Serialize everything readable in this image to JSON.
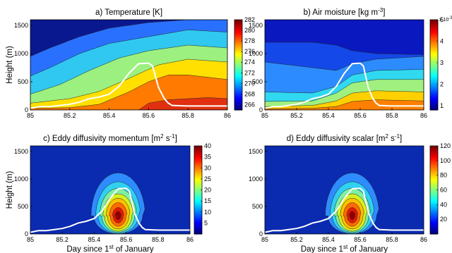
{
  "chart_data": [
    {
      "type": "contour",
      "title_main": "a) Temperature ",
      "title_unit": "[K]",
      "ylabel": "Height (m)",
      "xlabel": "",
      "x_ticks": [
        "85",
        "85.2",
        "85.4",
        "85.6",
        "85.8",
        "86"
      ],
      "y_ticks": [
        "0",
        "500",
        "1000",
        "1500"
      ],
      "xlim": [
        85,
        86
      ],
      "ylim": [
        0,
        1600
      ],
      "colorbar": {
        "ticks": [
          "266",
          "268",
          "270",
          "272",
          "274",
          "276",
          "278",
          "280",
          "282"
        ],
        "range": [
          265,
          282
        ],
        "colormap": "jet",
        "exponent": ""
      },
      "field_description_bands_bottom_to_top": [
        {
          "x": [
            85,
            85.2,
            85.35,
            85.5,
            85.6,
            85.7,
            85.8,
            86
          ],
          "y": [
            30,
            40,
            100,
            320,
            500,
            620,
            620,
            540
          ]
        },
        {
          "x": [
            85,
            85.2,
            85.35,
            85.5,
            85.65,
            85.8,
            86
          ],
          "y": [
            120,
            200,
            330,
            560,
            800,
            900,
            850
          ]
        },
        {
          "x": [
            85,
            85.15,
            85.3,
            85.45,
            85.6,
            85.8,
            86
          ],
          "y": [
            280,
            450,
            700,
            920,
            1050,
            1150,
            1100
          ]
        },
        {
          "x": [
            85,
            85.1,
            85.25,
            85.4,
            85.6,
            85.8,
            86
          ],
          "y": [
            600,
            750,
            1000,
            1180,
            1300,
            1420,
            1380
          ]
        },
        {
          "x": [
            85,
            85.1,
            85.25,
            85.4,
            85.6,
            85.8,
            86
          ],
          "y": [
            950,
            1100,
            1300,
            1450,
            1550,
            1600,
            1600
          ]
        }
      ],
      "boundary_layer_height_line": {
        "x": [
          85,
          85.05,
          85.1,
          85.15,
          85.2,
          85.25,
          85.3,
          85.35,
          85.4,
          85.45,
          85.5,
          85.55,
          85.6,
          85.62,
          85.65,
          85.68,
          85.7,
          85.72,
          85.8,
          86
        ],
        "y": [
          30,
          60,
          60,
          80,
          100,
          140,
          200,
          230,
          280,
          420,
          650,
          820,
          830,
          780,
          400,
          200,
          120,
          80,
          70,
          70
        ]
      }
    },
    {
      "type": "contour",
      "title_main": "b) Air moisture ",
      "title_unit": "[kg m",
      "title_sup": "-3",
      "title_end": "]",
      "ylabel": "",
      "xlabel": "",
      "x_ticks": [
        "85",
        "85.2",
        "85.4",
        "85.6",
        "85.8",
        "86"
      ],
      "y_ticks": [
        "0",
        "500",
        "1000",
        "1500"
      ],
      "xlim": [
        85,
        86
      ],
      "ylim": [
        0,
        1600
      ],
      "colorbar": {
        "ticks": [
          "1",
          "2",
          "3",
          "4",
          "5"
        ],
        "range": [
          0.8,
          5
        ],
        "colormap": "jet",
        "exponent": "x 10-3"
      }
    },
    {
      "type": "contour",
      "title_main": "c) Eddy diffusivity momentum ",
      "title_unit": "[m",
      "title_sup": "2",
      "title_mid": " s",
      "title_sup2": "-1",
      "title_end": "]",
      "ylabel": "Height (m)",
      "xlabel": "Day since 1st of January",
      "x_ticks": [
        "85",
        "85.2",
        "85.4",
        "85.6",
        "85.8",
        "86"
      ],
      "y_ticks": [
        "0",
        "500",
        "1000",
        "1500"
      ],
      "xlim": [
        85,
        86
      ],
      "ylim": [
        0,
        1600
      ],
      "colorbar": {
        "ticks": [
          "5",
          "10",
          "15",
          "20",
          "25",
          "30",
          "35",
          "40"
        ],
        "range": [
          0,
          40
        ],
        "colormap": "jet",
        "exponent": ""
      },
      "peak": {
        "x": 85.55,
        "y": 330
      }
    },
    {
      "type": "contour",
      "title_main": "d) Eddy diffusivity scalar ",
      "title_unit": "[m",
      "title_sup": "2",
      "title_mid": " s",
      "title_sup2": "-1",
      "title_end": "]",
      "ylabel": "",
      "xlabel": "Day since 1st of January",
      "x_ticks": [
        "85",
        "85.2",
        "85.4",
        "85.6",
        "85.8",
        "86"
      ],
      "y_ticks": [
        "0",
        "500",
        "1000",
        "1500"
      ],
      "xlim": [
        85,
        86
      ],
      "ylim": [
        0,
        1600
      ],
      "colorbar": {
        "ticks": [
          "20",
          "40",
          "60",
          "80",
          "100",
          "120"
        ],
        "range": [
          0,
          120
        ],
        "colormap": "jet",
        "exponent": ""
      },
      "peak": {
        "x": 85.55,
        "y": 330
      }
    }
  ],
  "xlabel_text": {
    "pre": "Day since 1",
    "sup": "st",
    "post": " of January"
  }
}
